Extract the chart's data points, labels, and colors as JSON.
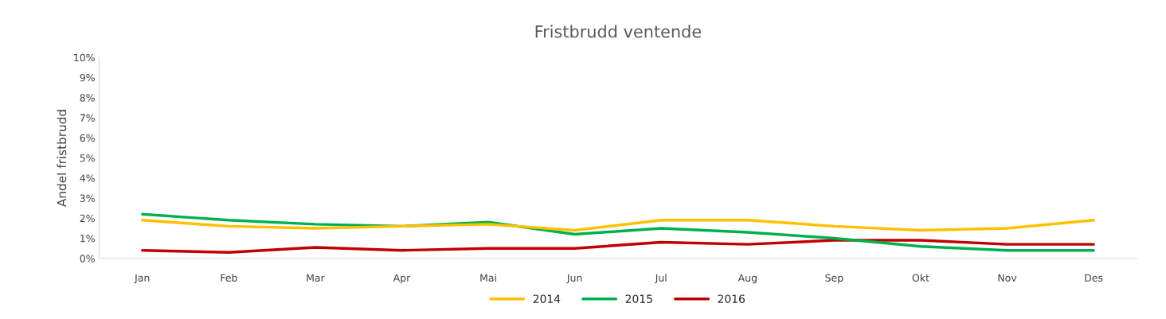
{
  "chart_data": {
    "type": "line",
    "title": "Fristbrudd ventende",
    "ylabel": "Andel fristbrudd",
    "categories": [
      "Jan",
      "Feb",
      "Mar",
      "Apr",
      "Mai",
      "Jun",
      "Jul",
      "Aug",
      "Sep",
      "Okt",
      "Nov",
      "Des"
    ],
    "series": [
      {
        "name": "2014",
        "color": "#ffc000",
        "values": [
          1.9,
          1.6,
          1.5,
          1.6,
          1.7,
          1.4,
          1.9,
          1.9,
          1.6,
          1.4,
          1.5,
          1.9
        ]
      },
      {
        "name": "2015",
        "color": "#00b050",
        "values": [
          2.2,
          1.9,
          1.7,
          1.6,
          1.8,
          1.2,
          1.5,
          1.3,
          1.0,
          0.6,
          0.4,
          0.4
        ]
      },
      {
        "name": "2016",
        "color": "#c00000",
        "values": [
          0.4,
          0.3,
          0.55,
          0.4,
          0.5,
          0.5,
          0.8,
          0.7,
          0.9,
          0.9,
          0.7,
          0.7
        ]
      }
    ],
    "ylim": [
      0,
      10
    ],
    "yticks": [
      {
        "value": 0,
        "label": "0%"
      },
      {
        "value": 1,
        "label": "1%"
      },
      {
        "value": 2,
        "label": "2%"
      },
      {
        "value": 3,
        "label": "3%"
      },
      {
        "value": 4,
        "label": "4%"
      },
      {
        "value": 5,
        "label": "5%"
      },
      {
        "value": 6,
        "label": "6%"
      },
      {
        "value": 7,
        "label": "7%"
      },
      {
        "value": 8,
        "label": "8%"
      },
      {
        "value": 9,
        "label": "9%"
      },
      {
        "value": 10,
        "label": "10%"
      }
    ],
    "grid": false,
    "legend": "bottom",
    "marker": "none",
    "line_style": "solid"
  }
}
